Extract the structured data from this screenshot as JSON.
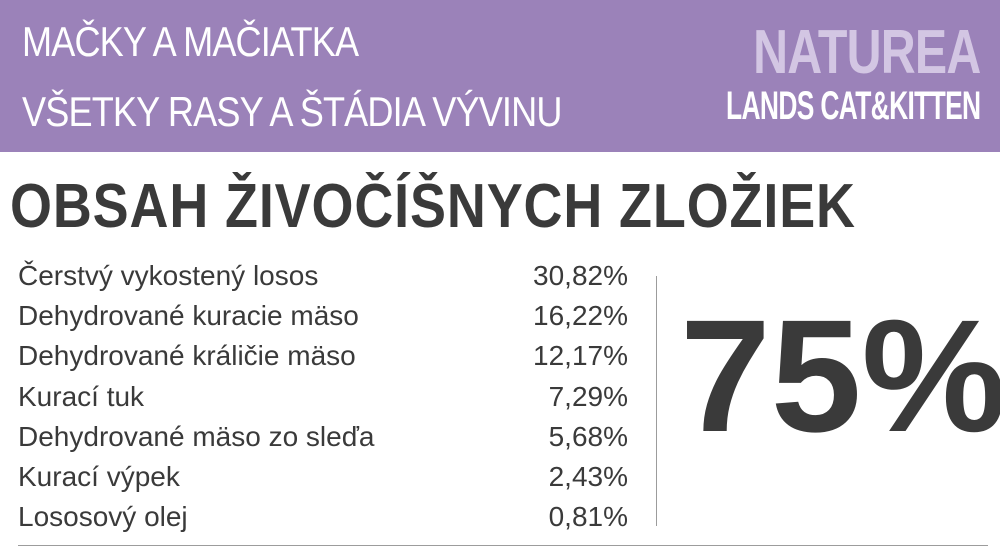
{
  "header": {
    "subtitle_line1": "MAČKY A MAČIATKA",
    "subtitle_line2": "VŠETKY RASY A ŠTÁDIA VÝVINU",
    "brand_line1": "NATUREA",
    "brand_line2": "LANDS CAT&KITTEN"
  },
  "title": "OBSAH ŽIVOČÍŠNYCH ZLOŽIEK",
  "ingredients": [
    {
      "name": "Čerstvý vykostený losos",
      "value": "30,82%"
    },
    {
      "name": "Dehydrované kuracie mäso",
      "value": "16,22%"
    },
    {
      "name": "Dehydrované králičie mäso",
      "value": "12,17%"
    },
    {
      "name": "Kurací tuk",
      "value": "7,29%"
    },
    {
      "name": "Dehydrované mäso zo sleďa",
      "value": "5,68%"
    },
    {
      "name": "Kurací výpek",
      "value": "2,43%"
    },
    {
      "name": "Lososový olej",
      "value": "0,81%"
    }
  ],
  "total": "75%",
  "colors": {
    "header_bg": "#9b82b9",
    "brand_light": "#d3c6e3",
    "text_dark": "#3a3a3a"
  }
}
